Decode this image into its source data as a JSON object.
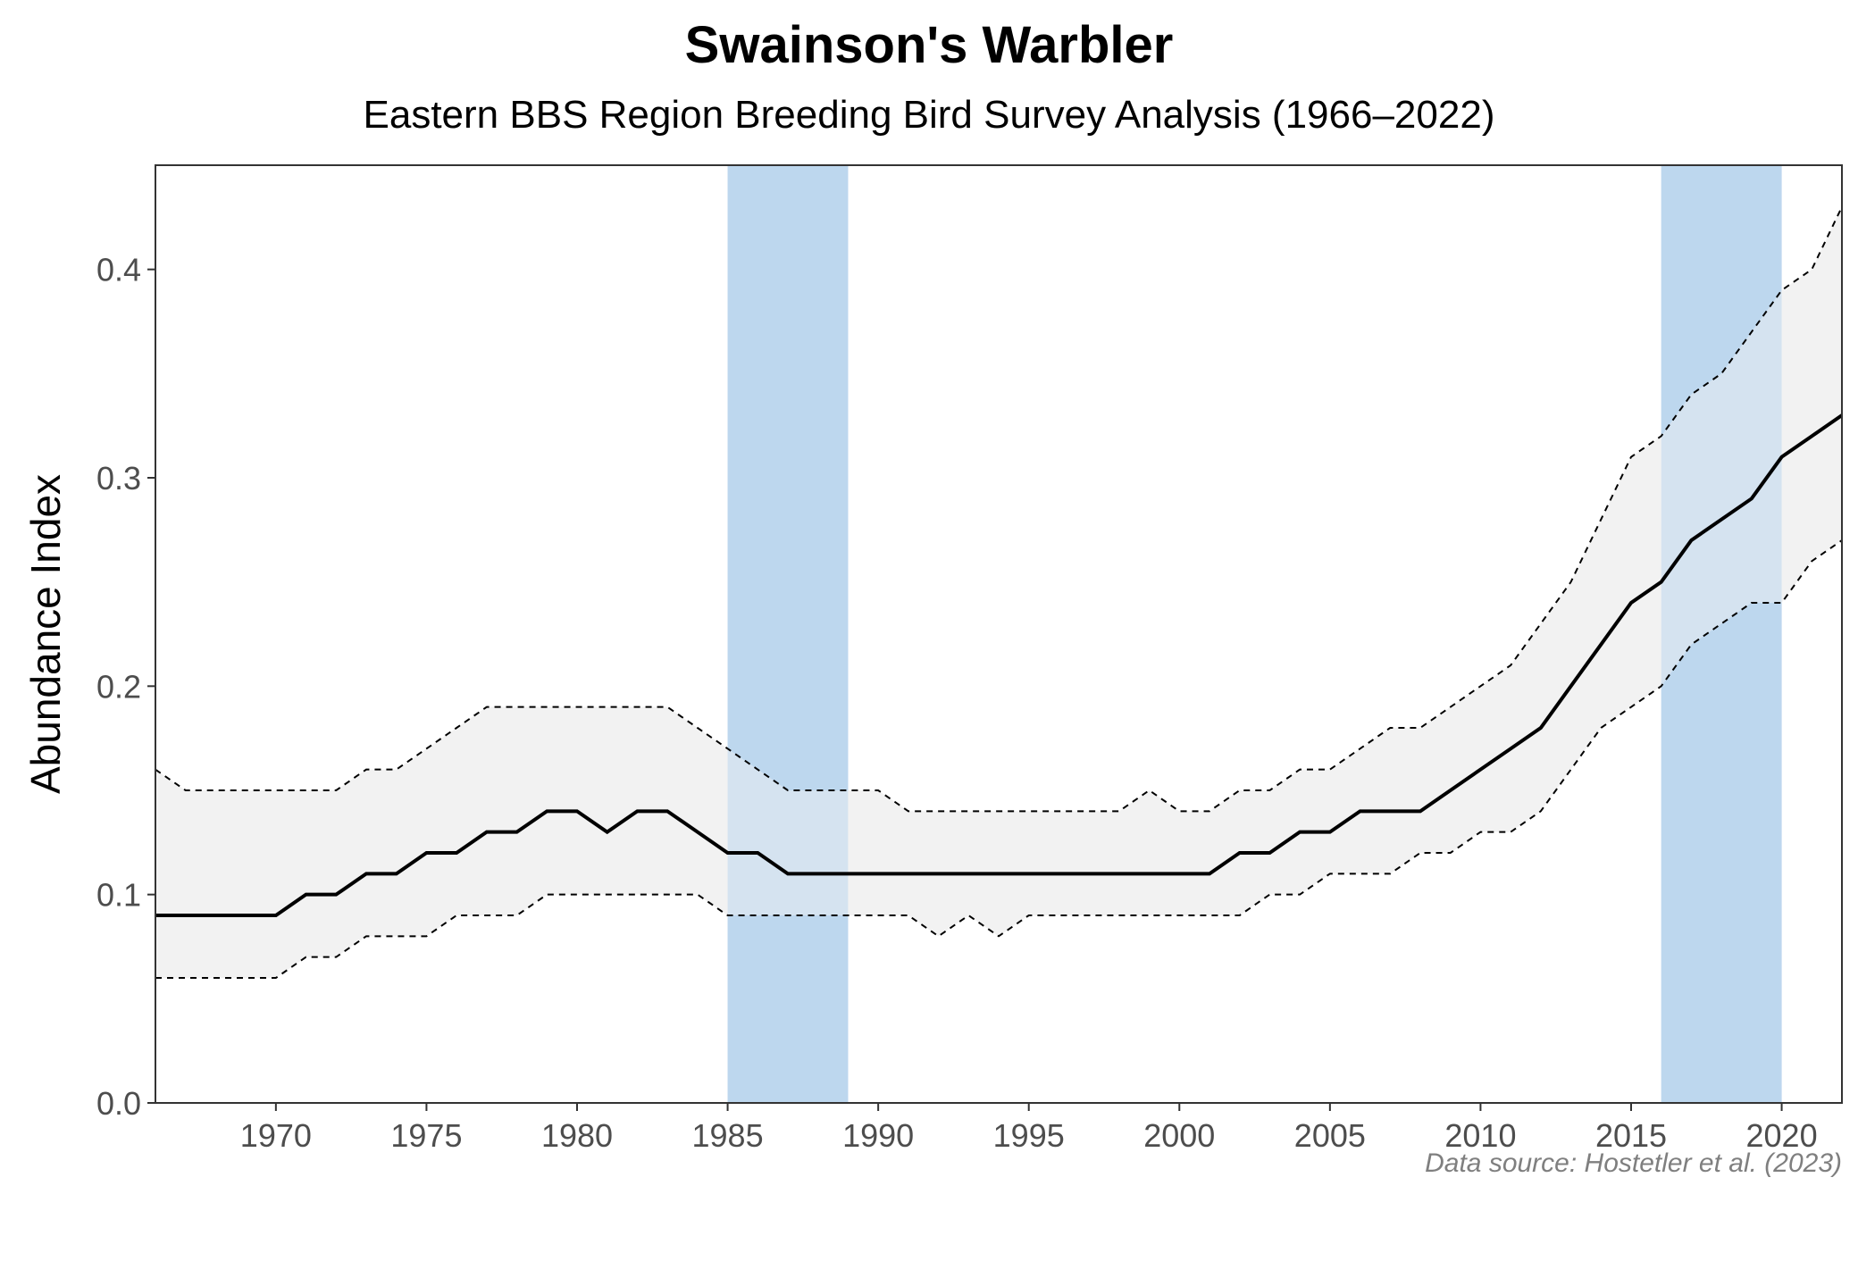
{
  "chart_data": {
    "type": "line",
    "title": "Swainson's Warbler",
    "subtitle": "Eastern BBS Region Breeding Bird Survey Analysis (1966–2022)",
    "xlabel": "",
    "ylabel": "Abundance Index",
    "caption": "Data source: Hostetler et al. (2023)",
    "xlim": [
      1966,
      2022
    ],
    "ylim": [
      0,
      0.45
    ],
    "x_ticks": [
      1970,
      1975,
      1980,
      1985,
      1990,
      1995,
      2000,
      2005,
      2010,
      2015,
      2020
    ],
    "y_ticks": [
      0.0,
      0.1,
      0.2,
      0.3,
      0.4
    ],
    "y_tick_labels": [
      "0.0",
      "0.1",
      "0.2",
      "0.3",
      "0.4"
    ],
    "grid": false,
    "colors": {
      "shade": "#bdd7ee",
      "ribbon": "#f2f2f2",
      "line": "#000000"
    },
    "highlight_periods": [
      {
        "start": 1985,
        "end": 1989
      },
      {
        "start": 2016,
        "end": 2020
      }
    ],
    "x": [
      1966,
      1967,
      1968,
      1969,
      1970,
      1971,
      1972,
      1973,
      1974,
      1975,
      1976,
      1977,
      1978,
      1979,
      1980,
      1981,
      1982,
      1983,
      1984,
      1985,
      1986,
      1987,
      1988,
      1989,
      1990,
      1991,
      1992,
      1993,
      1994,
      1995,
      1996,
      1997,
      1998,
      1999,
      2000,
      2001,
      2002,
      2003,
      2004,
      2005,
      2006,
      2007,
      2008,
      2009,
      2010,
      2011,
      2012,
      2013,
      2014,
      2015,
      2016,
      2017,
      2018,
      2019,
      2020,
      2021,
      2022
    ],
    "series": [
      {
        "name": "index",
        "values": [
          0.09,
          0.09,
          0.09,
          0.09,
          0.09,
          0.1,
          0.1,
          0.11,
          0.11,
          0.12,
          0.12,
          0.13,
          0.13,
          0.14,
          0.14,
          0.13,
          0.14,
          0.14,
          0.13,
          0.12,
          0.12,
          0.11,
          0.11,
          0.11,
          0.11,
          0.11,
          0.11,
          0.11,
          0.11,
          0.11,
          0.11,
          0.11,
          0.11,
          0.11,
          0.11,
          0.11,
          0.12,
          0.12,
          0.13,
          0.13,
          0.14,
          0.14,
          0.14,
          0.15,
          0.16,
          0.17,
          0.18,
          0.2,
          0.22,
          0.24,
          0.25,
          0.27,
          0.28,
          0.29,
          0.31,
          0.32,
          0.33
        ]
      },
      {
        "name": "upper_credible_interval",
        "values": [
          0.16,
          0.15,
          0.15,
          0.15,
          0.15,
          0.15,
          0.15,
          0.16,
          0.16,
          0.17,
          0.18,
          0.19,
          0.19,
          0.19,
          0.19,
          0.19,
          0.19,
          0.19,
          0.18,
          0.17,
          0.16,
          0.15,
          0.15,
          0.15,
          0.15,
          0.14,
          0.14,
          0.14,
          0.14,
          0.14,
          0.14,
          0.14,
          0.14,
          0.15,
          0.14,
          0.14,
          0.15,
          0.15,
          0.16,
          0.16,
          0.17,
          0.18,
          0.18,
          0.19,
          0.2,
          0.21,
          0.23,
          0.25,
          0.28,
          0.31,
          0.32,
          0.34,
          0.35,
          0.37,
          0.39,
          0.4,
          0.43
        ]
      },
      {
        "name": "lower_credible_interval",
        "values": [
          0.06,
          0.06,
          0.06,
          0.06,
          0.06,
          0.07,
          0.07,
          0.08,
          0.08,
          0.08,
          0.09,
          0.09,
          0.09,
          0.1,
          0.1,
          0.1,
          0.1,
          0.1,
          0.1,
          0.09,
          0.09,
          0.09,
          0.09,
          0.09,
          0.09,
          0.09,
          0.08,
          0.09,
          0.08,
          0.09,
          0.09,
          0.09,
          0.09,
          0.09,
          0.09,
          0.09,
          0.09,
          0.1,
          0.1,
          0.11,
          0.11,
          0.11,
          0.12,
          0.12,
          0.13,
          0.13,
          0.14,
          0.16,
          0.18,
          0.19,
          0.2,
          0.22,
          0.23,
          0.24,
          0.24,
          0.26,
          0.27
        ]
      }
    ]
  }
}
